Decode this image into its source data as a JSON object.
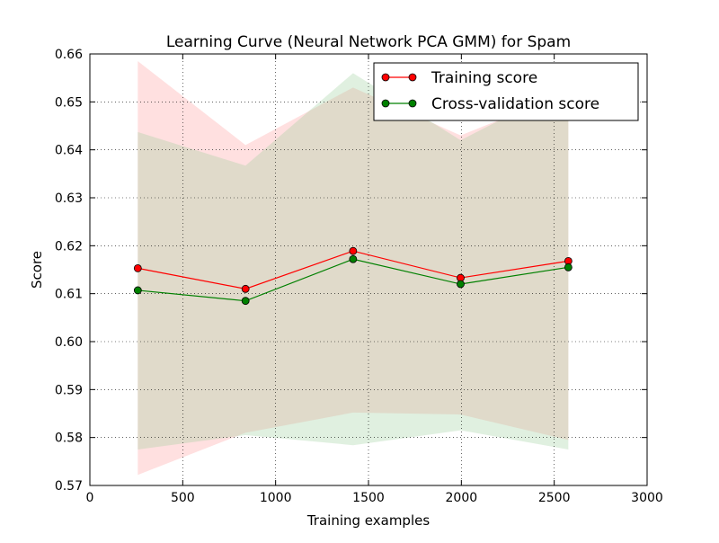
{
  "chart_data": {
    "type": "line",
    "title": "Learning Curve (Neural Network PCA GMM) for Spam",
    "xlabel": "Training examples",
    "ylabel": "Score",
    "xlim": [
      0,
      3000
    ],
    "ylim": [
      0.57,
      0.66
    ],
    "xticks": [
      0,
      500,
      1000,
      1500,
      2000,
      2500,
      3000
    ],
    "yticks": [
      0.57,
      0.58,
      0.59,
      0.6,
      0.61,
      0.62,
      0.63,
      0.64,
      0.65,
      0.66
    ],
    "xtick_labels": [
      "0",
      "500",
      "1000",
      "1500",
      "2000",
      "2500",
      "3000"
    ],
    "ytick_labels": [
      "0.57",
      "0.58",
      "0.59",
      "0.60",
      "0.61",
      "0.62",
      "0.63",
      "0.64",
      "0.65",
      "0.66"
    ],
    "grid": true,
    "legend_position": "upper-right",
    "x": [
      258,
      838,
      1417,
      1996,
      2576
    ],
    "series": [
      {
        "name": "Training score",
        "color": "#ff0000",
        "band_color": "#ff9999",
        "values": [
          0.6153,
          0.611,
          0.6189,
          0.6133,
          0.6168
        ],
        "upper": [
          0.6585,
          0.641,
          0.653,
          0.643,
          0.652
        ],
        "lower": [
          0.5722,
          0.581,
          0.5852,
          0.5848,
          0.5795
        ]
      },
      {
        "name": "Cross-validation score",
        "color": "#008000",
        "band_color": "#99cc99",
        "values": [
          0.6107,
          0.6085,
          0.6172,
          0.612,
          0.6155
        ],
        "upper": [
          0.6437,
          0.6367,
          0.656,
          0.642,
          0.6535
        ],
        "lower": [
          0.5775,
          0.5805,
          0.5784,
          0.5815,
          0.5775
        ]
      }
    ]
  }
}
